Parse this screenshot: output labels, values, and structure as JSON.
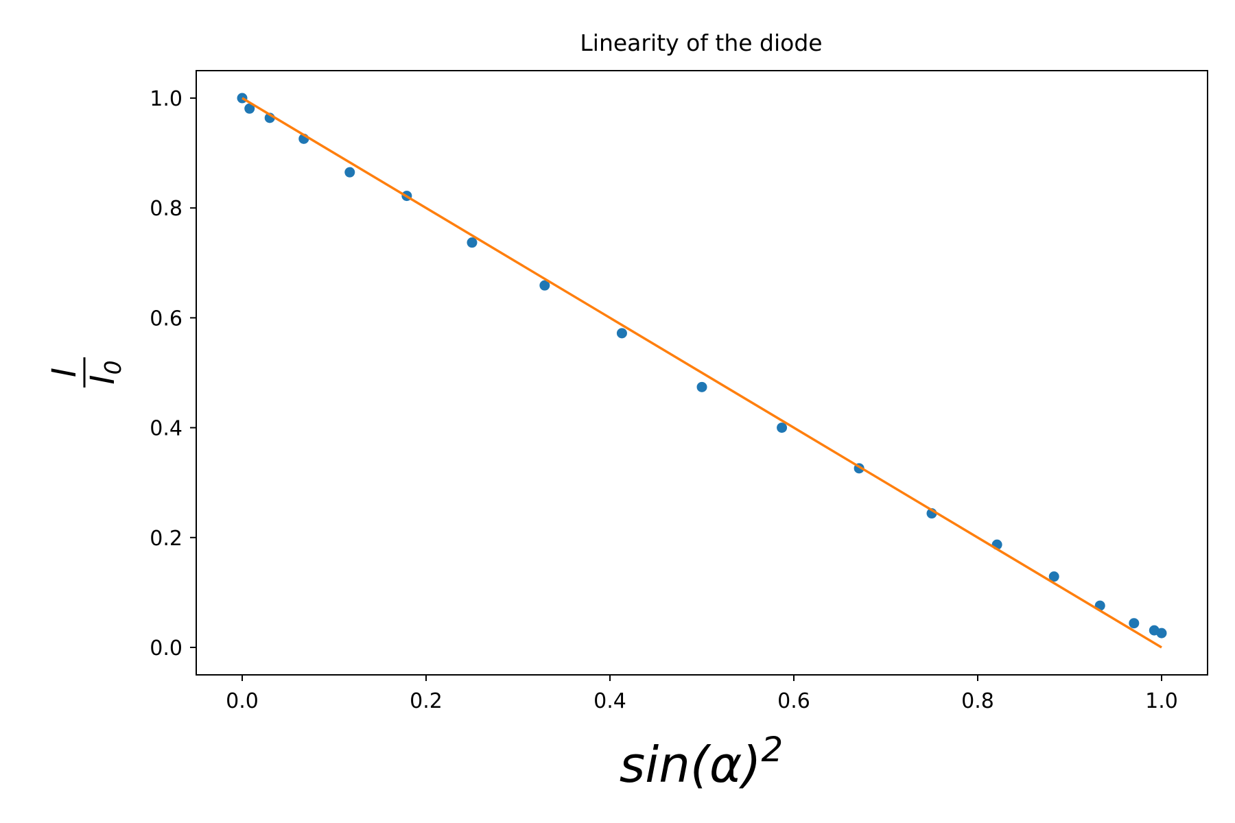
{
  "chart_data": {
    "type": "scatter",
    "title": "Linearity of the diode",
    "xlabel": {
      "main": "sin(α)",
      "superscript": "2"
    },
    "ylabel": {
      "numerator": "I",
      "denominator": "I",
      "denominator_subscript": "0"
    },
    "xlim": [
      -0.05,
      1.05
    ],
    "ylim": [
      -0.05,
      1.05
    ],
    "x_ticks": [
      0.0,
      0.2,
      0.4,
      0.6,
      0.8,
      1.0
    ],
    "x_tick_labels": [
      "0.0",
      "0.2",
      "0.4",
      "0.6",
      "0.8",
      "1.0"
    ],
    "y_ticks": [
      0.0,
      0.2,
      0.4,
      0.6,
      0.8,
      1.0
    ],
    "y_tick_labels": [
      "0.0",
      "0.2",
      "0.4",
      "0.6",
      "0.8",
      "1.0"
    ],
    "grid": false,
    "series": [
      {
        "kind": "points",
        "color": "#1f77b4",
        "x": [
          0.0,
          0.008,
          0.03,
          0.067,
          0.117,
          0.179,
          0.25,
          0.329,
          0.413,
          0.5,
          0.587,
          0.671,
          0.75,
          0.821,
          0.883,
          0.933,
          0.97,
          0.992,
          1.0
        ],
        "y": [
          1.0,
          0.981,
          0.964,
          0.926,
          0.865,
          0.822,
          0.737,
          0.659,
          0.572,
          0.474,
          0.4,
          0.326,
          0.244,
          0.187,
          0.129,
          0.076,
          0.044,
          0.031,
          0.026
        ]
      },
      {
        "kind": "line",
        "color": "#ff7f0e",
        "x": [
          0.0,
          1.0
        ],
        "y": [
          1.0,
          0.0
        ]
      }
    ]
  }
}
